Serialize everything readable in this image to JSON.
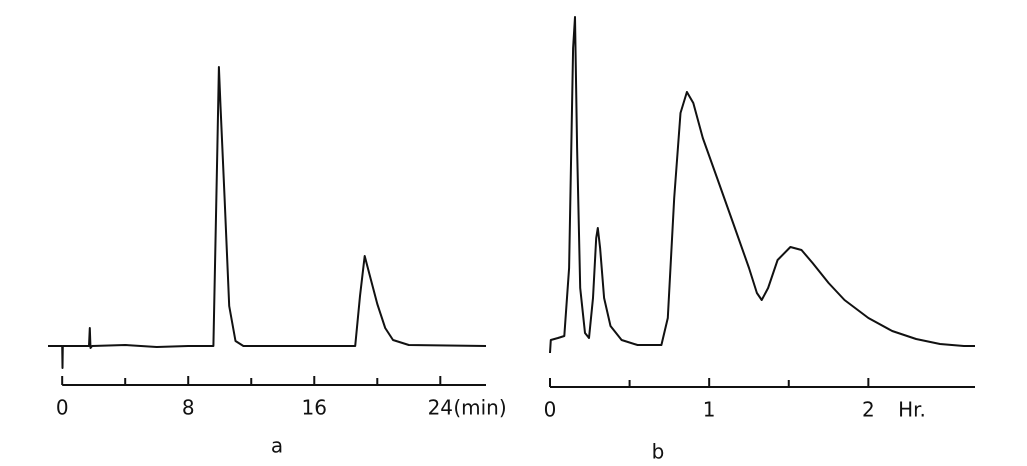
{
  "chart_data": [
    {
      "type": "line",
      "panel_label": "a",
      "x_label": "(min)",
      "color": "#111",
      "xlim": [
        -0.9,
        26.9
      ],
      "ylim": [
        -30,
        300
      ],
      "xticks": [
        0,
        8,
        16,
        24
      ],
      "xminor_ticks": [
        4,
        12,
        20
      ],
      "x": [
        -0.9,
        0,
        0.02,
        0.04,
        1.7,
        1.75,
        1.8,
        1.9,
        4,
        6,
        8,
        9.6,
        9.85,
        9.95,
        10.05,
        10.3,
        10.6,
        11.0,
        11.5,
        18.6,
        18.9,
        19.2,
        19.5,
        20.0,
        20.5,
        21.0,
        22.0,
        26.9
      ],
      "values": [
        0,
        0,
        -22,
        0,
        0,
        18,
        -2,
        0,
        1,
        -1,
        0,
        0,
        200,
        279,
        240,
        150,
        40,
        5,
        0,
        0,
        50,
        90,
        72,
        42,
        18,
        6,
        1,
        0
      ]
    },
    {
      "type": "line",
      "panel_label": "b",
      "x_label": "Hr.",
      "color": "#111",
      "xlim": [
        0,
        2.67
      ],
      "ylim": [
        -10,
        340
      ],
      "xticks": [
        0,
        1,
        2
      ],
      "xminor_ticks": [
        0.5,
        1.5
      ],
      "x": [
        0,
        0.005,
        0.05,
        0.09,
        0.12,
        0.145,
        0.157,
        0.17,
        0.19,
        0.22,
        0.245,
        0.27,
        0.29,
        0.3,
        0.315,
        0.34,
        0.38,
        0.45,
        0.55,
        0.7,
        0.74,
        0.78,
        0.82,
        0.86,
        0.9,
        0.96,
        1.05,
        1.15,
        1.25,
        1.3,
        1.33,
        1.37,
        1.43,
        1.51,
        1.58,
        1.65,
        1.75,
        1.85,
        2.0,
        2.15,
        2.3,
        2.45,
        2.6,
        2.67
      ],
      "values": [
        -5,
        8,
        10,
        12,
        80,
        300,
        331,
        200,
        60,
        15,
        10,
        50,
        110,
        120,
        100,
        50,
        22,
        8,
        3,
        3,
        30,
        150,
        235,
        256,
        245,
        210,
        170,
        125,
        80,
        55,
        48,
        60,
        88,
        101,
        98,
        85,
        65,
        48,
        30,
        17,
        9,
        4,
        2,
        2
      ]
    }
  ]
}
